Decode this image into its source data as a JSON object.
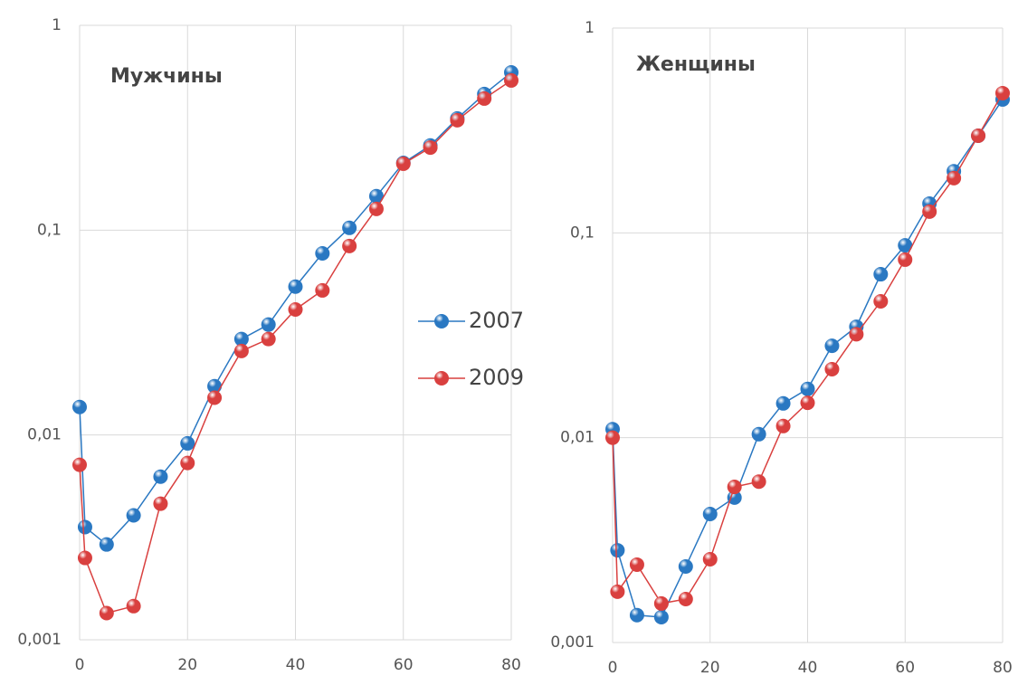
{
  "chart_data": [
    {
      "type": "line",
      "title": "Мужчины",
      "yscale": "log",
      "grid": true,
      "legend": "right",
      "x": [
        0,
        1,
        5,
        10,
        15,
        20,
        25,
        30,
        35,
        40,
        45,
        50,
        55,
        60,
        65,
        70,
        75,
        80
      ],
      "xlim": [
        0,
        80
      ],
      "xticks": [
        0,
        20,
        40,
        60,
        80
      ],
      "ylim": [
        0.001,
        1
      ],
      "yticks": [
        {
          "value": 0.001,
          "label": "0,001"
        },
        {
          "value": 0.01,
          "label": "0,01"
        },
        {
          "value": 0.1,
          "label": "0,1"
        },
        1
      ],
      "series": [
        {
          "name": "2007",
          "color": "#2a78c2",
          "values": [
            0.0137,
            0.00355,
            0.00292,
            0.00405,
            0.00626,
            0.0091,
            0.0173,
            0.0294,
            0.0346,
            0.053,
            0.077,
            0.1026,
            0.1465,
            0.213,
            0.259,
            0.351,
            0.462,
            0.589
          ]
        },
        {
          "name": "2009",
          "color": "#d9403f",
          "values": [
            0.00715,
            0.00251,
            0.00135,
            0.00146,
            0.00462,
            0.0073,
            0.0152,
            0.0257,
            0.0294,
            0.041,
            0.0508,
            0.0837,
            0.127,
            0.211,
            0.253,
            0.344,
            0.439,
            0.538
          ]
        }
      ]
    },
    {
      "type": "line",
      "title": "Женщины",
      "yscale": "log",
      "grid": true,
      "x": [
        0,
        1,
        5,
        10,
        15,
        20,
        25,
        30,
        35,
        40,
        45,
        50,
        55,
        60,
        65,
        70,
        75,
        80
      ],
      "xlim": [
        0,
        80
      ],
      "xticks": [
        0,
        20,
        40,
        60,
        80
      ],
      "ylim": [
        0.001,
        1
      ],
      "yticks": [
        {
          "value": 0.001,
          "label": "0,001"
        },
        {
          "value": 0.01,
          "label": "0,01"
        },
        {
          "value": 0.1,
          "label": "0,1"
        },
        1
      ],
      "series": [
        {
          "color": "#2a78c2",
          "values": [
            0.011,
            0.00282,
            0.00136,
            0.00133,
            0.00235,
            0.00424,
            0.0051,
            0.0104,
            0.0147,
            0.0173,
            0.0281,
            0.0348,
            0.0628,
            0.0869,
            0.139,
            0.2,
            0.298,
            0.448
          ]
        },
        {
          "color": "#d9403f",
          "values": [
            0.01,
            0.00177,
            0.0024,
            0.00155,
            0.00163,
            0.00255,
            0.00575,
            0.0061,
            0.0114,
            0.0148,
            0.0216,
            0.032,
            0.0463,
            0.074,
            0.127,
            0.185,
            0.298,
            0.481
          ]
        }
      ]
    }
  ]
}
